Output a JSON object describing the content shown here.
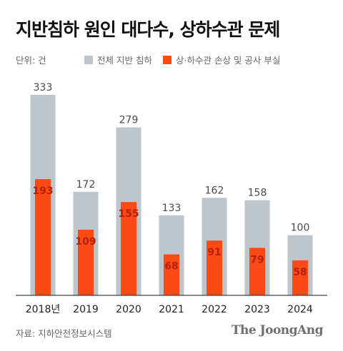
{
  "title": "지반침하 원인 대다수, 상하수관 문제",
  "unit_label": "단위: 건",
  "source": "자료: 지하안전정보시스템",
  "logo_text": "The JoongAng",
  "colors": {
    "total": "#bdc6cc",
    "damage": "#fc4a14",
    "axis": "#444444",
    "label": "#4a4a4a"
  },
  "chart_data": {
    "type": "bar",
    "title": "지반침하 원인 대다수, 상하수관 문제",
    "unit": "건",
    "categories": [
      "2018년",
      "2019",
      "2020",
      "2021",
      "2022",
      "2023",
      "2024"
    ],
    "series": [
      {
        "name": "전체 지반 침하",
        "values": [
          333,
          172,
          279,
          133,
          162,
          158,
          100
        ]
      },
      {
        "name": "상·하수관 손상 및 공사 부실",
        "values": [
          193,
          109,
          155,
          68,
          91,
          79,
          58
        ]
      }
    ],
    "ylim": [
      0,
      333
    ],
    "bar_layout": "overlapped",
    "legend_position": "top"
  }
}
